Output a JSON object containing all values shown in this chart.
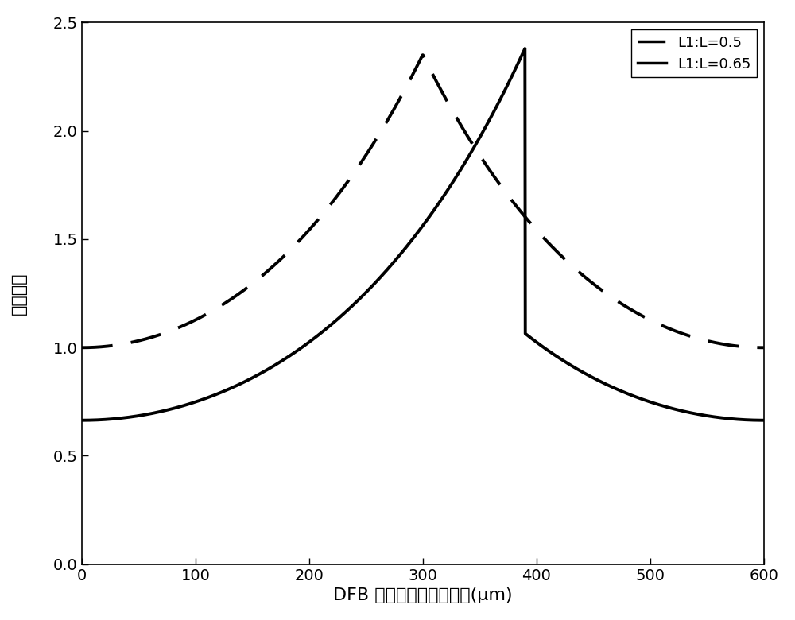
{
  "title": "",
  "xlabel": "DFB 半导体激光器的腔长(μm)",
  "ylabel": "光场强度",
  "xlim": [
    0,
    600
  ],
  "ylim": [
    0,
    2.5
  ],
  "yticks": [
    0,
    0.5,
    1.0,
    1.5,
    2.0,
    2.5
  ],
  "xticks": [
    0,
    100,
    200,
    300,
    400,
    500,
    600
  ],
  "legend_labels": [
    "L1:L=0.5",
    "L1:L=0.65"
  ],
  "line_color": "#000000",
  "line_width": 2.8,
  "background_color": "#ffffff",
  "figsize": [
    10.0,
    7.8
  ],
  "dpi": 100,
  "L": 600,
  "L1_ratio_1": 0.5,
  "L1_ratio_2": 0.65,
  "kappa_L": 3.0,
  "font_size_labels": 16,
  "font_size_ticks": 14,
  "font_size_legend": 13,
  "target_peak1": 2.35,
  "target_peak2": 2.38,
  "dash_pattern": [
    10,
    6
  ]
}
